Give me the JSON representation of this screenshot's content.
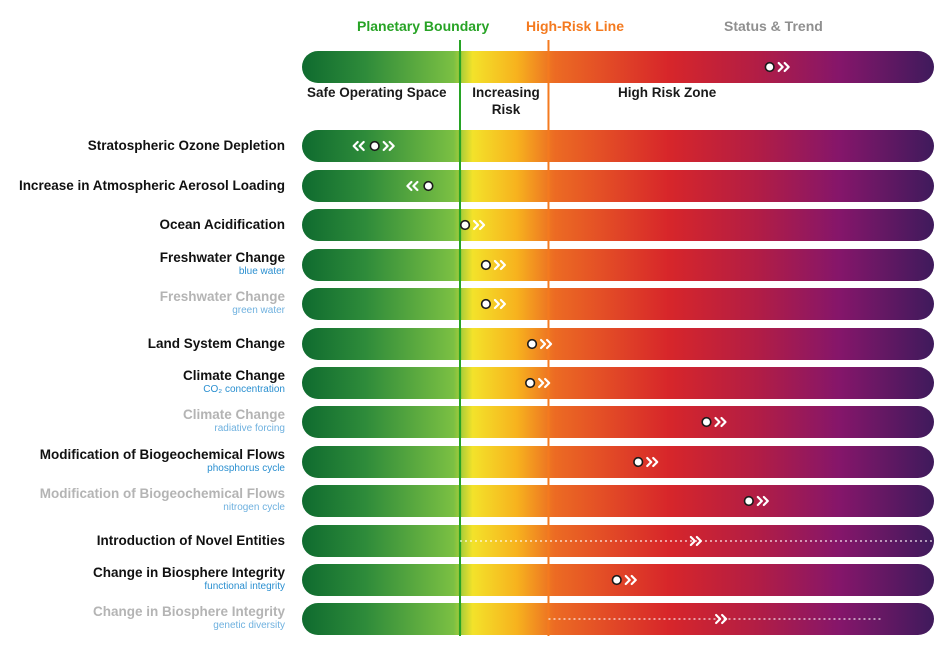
{
  "header": {
    "planetary_boundary": "Planetary Boundary",
    "high_risk_line": "High-Risk Line",
    "status_trend": "Status & Trend"
  },
  "colors": {
    "planetary_boundary": "#27a325",
    "high_risk_line": "#f47a1f",
    "gradient": [
      "#0f6b2f",
      "#2e8b3a",
      "#7bc043",
      "#f3e22a",
      "#f7b21e",
      "#ec6b23",
      "#d7262a",
      "#b21d45",
      "#85166a",
      "#3f1a5c"
    ]
  },
  "chart_data": {
    "type": "bar",
    "title": "",
    "scale": "position along the gradient bar from 0 (start) to 1 (end)",
    "planetary_boundary_position": 0.25,
    "high_risk_line_position": 0.39,
    "legend": {
      "zones": [
        "Safe Operating Space",
        "Increasing Risk",
        "High Risk Zone"
      ],
      "status": 0.74,
      "trend": "increasing"
    },
    "rows": [
      {
        "label": "Stratospheric Ozone Depletion",
        "sub": "",
        "status": 0.115,
        "trend": "both",
        "dimmed": false,
        "dotted": false
      },
      {
        "label": "Increase in Atmospheric Aerosol Loading",
        "sub": "",
        "status": 0.2,
        "trend": "decreasing",
        "dimmed": false,
        "dotted": false
      },
      {
        "label": "Ocean Acidification",
        "sub": "",
        "status": 0.258,
        "trend": "increasing",
        "dimmed": false,
        "dotted": false
      },
      {
        "label": "Freshwater Change",
        "sub": "blue water",
        "status": 0.291,
        "trend": "increasing",
        "dimmed": false,
        "dotted": false
      },
      {
        "label": "Freshwater Change",
        "sub": "green water",
        "status": 0.291,
        "trend": "increasing",
        "dimmed": true,
        "dotted": false
      },
      {
        "label": "Land System Change",
        "sub": "",
        "status": 0.364,
        "trend": "increasing",
        "dimmed": false,
        "dotted": false
      },
      {
        "label": "Climate Change",
        "sub": "CO₂ concentration",
        "status": 0.361,
        "trend": "increasing",
        "dimmed": false,
        "dotted": false
      },
      {
        "label": "Climate Change",
        "sub": "radiative forcing",
        "status": 0.64,
        "trend": "increasing",
        "dimmed": true,
        "dotted": false
      },
      {
        "label": "Modification of Biogeochemical Flows",
        "sub": "phosphorus cycle",
        "status": 0.532,
        "trend": "increasing",
        "dimmed": false,
        "dotted": false
      },
      {
        "label": "Modification of Biogeochemical Flows",
        "sub": "nitrogen cycle",
        "status": 0.707,
        "trend": "increasing",
        "dimmed": true,
        "dotted": false
      },
      {
        "label": "Introduction of Novel Entities",
        "sub": "",
        "status": null,
        "trend": "increasing",
        "trend_position": 0.62,
        "dimmed": false,
        "dotted": true,
        "dotted_range": [
          0.25,
          1.0
        ]
      },
      {
        "label": "Change in Biosphere Integrity",
        "sub": "functional integrity",
        "status": 0.498,
        "trend": "increasing",
        "dimmed": false,
        "dotted": false
      },
      {
        "label": "Change in Biosphere Integrity",
        "sub": "genetic diversity",
        "status": null,
        "trend": "increasing",
        "trend_position": 0.66,
        "dimmed": true,
        "dotted": true,
        "dotted_range": [
          0.39,
          0.92
        ]
      }
    ]
  }
}
